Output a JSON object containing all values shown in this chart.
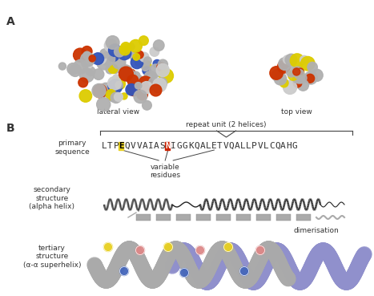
{
  "fig_width": 4.67,
  "fig_height": 3.69,
  "bg_color": "#ffffff",
  "label_A": "A",
  "label_B": "B",
  "lateral_view_label": "lateral view",
  "top_view_label": "top view",
  "repeat_unit_label": "repeat unit (2 helices)",
  "primary_sequence_label": "primary\nsequence",
  "variable_residues_label": "variable\nresidues",
  "secondary_structure_label": "secondary\nstructure\n(alpha helix)",
  "tertiary_structure_label": "tertiary\nstructure\n(α-α superhelix)",
  "dimerisation_label": "dimerisation",
  "text_color": "#333333",
  "dark_gray": "#444444",
  "yellow_color": "#e8d020",
  "red_color": "#cc2200",
  "blue_color": "#3366cc",
  "sphere_yellow": "#e8d020",
  "sphere_blue": "#4466bb",
  "sphere_red": "#cc3322",
  "sphere_pink": "#dd8888",
  "gray_sphere": "#aaaaaa",
  "superhelix_gray": "#aaaaaa",
  "purple_color": "#8888bb",
  "font_size_label": 9,
  "font_size_small": 6.5,
  "font_size_sequence": 8.0
}
